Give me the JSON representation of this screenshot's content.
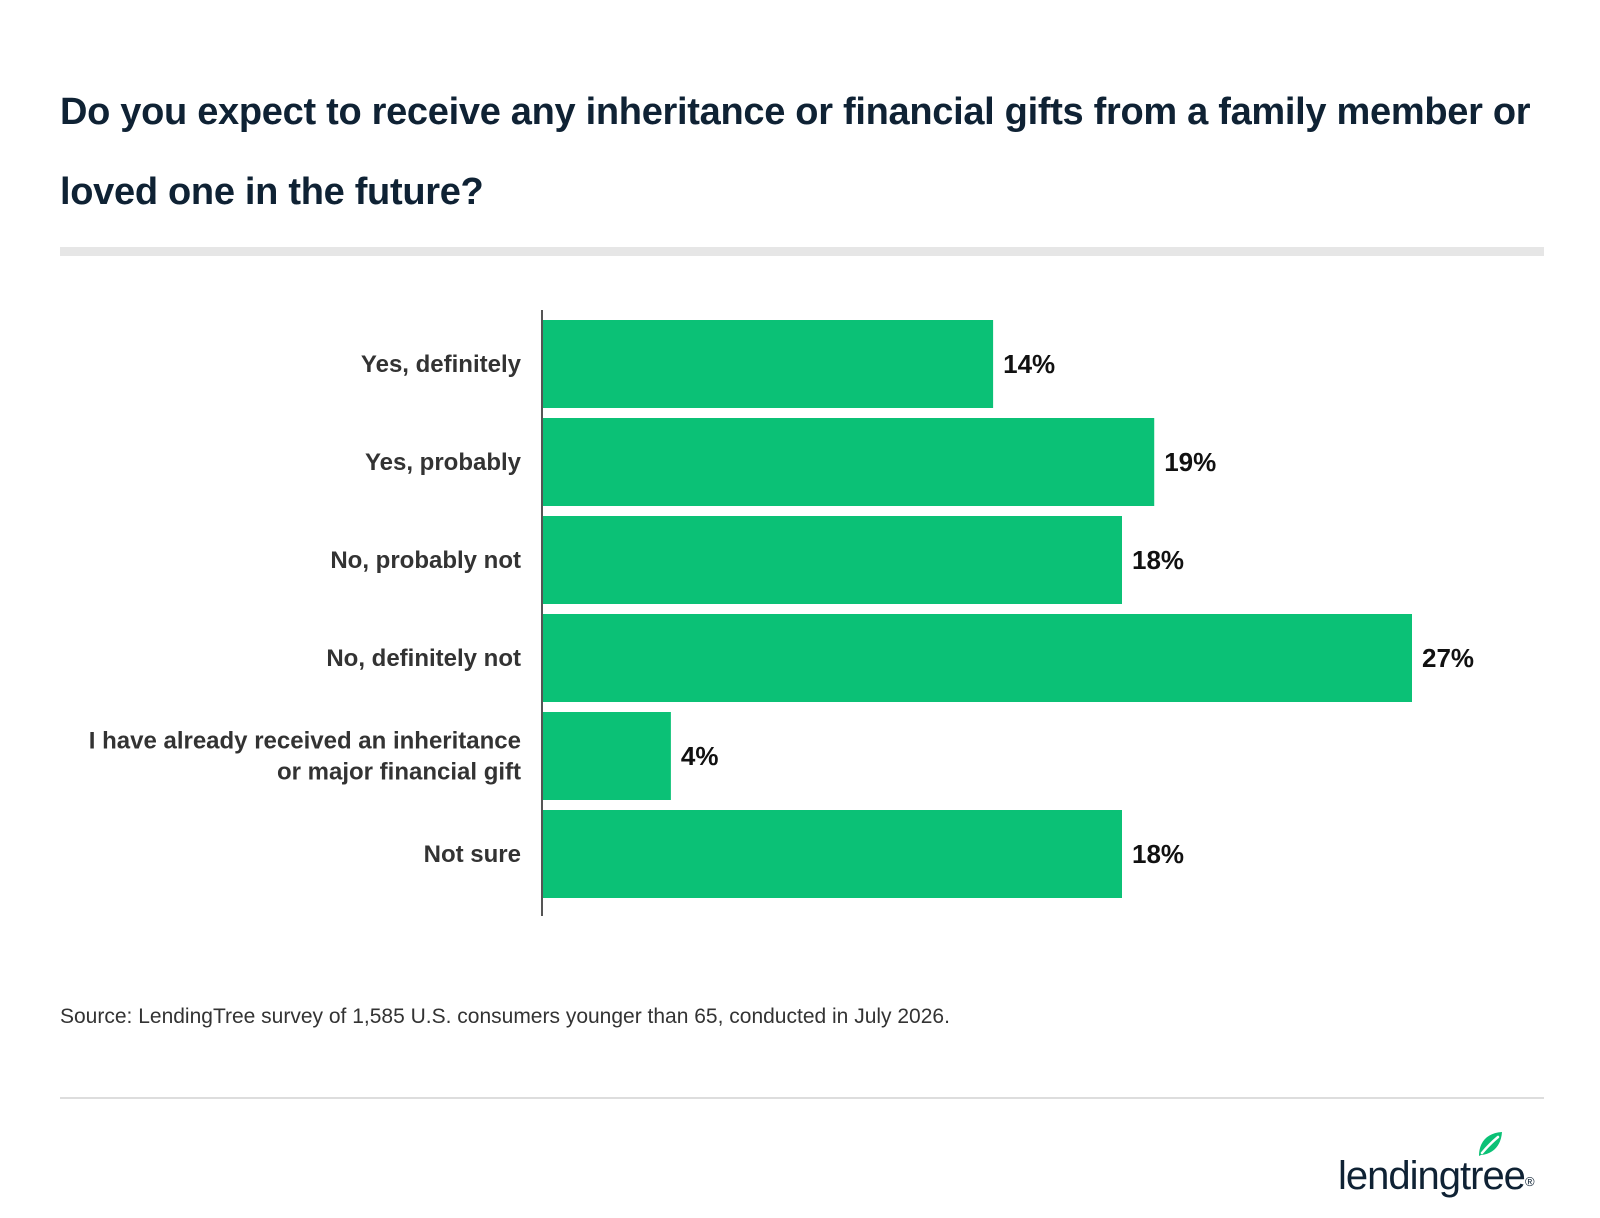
{
  "title": "Do you expect to receive any inheritance or financial gifts from a family member or loved one in the future?",
  "source": "Source: LendingTree survey of 1,585 U.S. consumers younger than 65, conducted in July 2026.",
  "brand": {
    "logo_text": "lendingtree",
    "logo_icon": "leaf-icon",
    "trademark": "®"
  },
  "colors": {
    "bar": "#0bc176",
    "title": "#0f2234",
    "label": "#333333",
    "value": "#111111",
    "axis": "#555555",
    "rule": "#e6e6e6"
  },
  "chart_data": {
    "type": "bar",
    "orientation": "horizontal",
    "categories": [
      [
        "Yes, definitely"
      ],
      [
        "Yes, probably"
      ],
      [
        "No, probably not"
      ],
      [
        "No, definitely not"
      ],
      [
        "I have already received an inheritance",
        "or major financial gift"
      ],
      [
        "Not sure"
      ]
    ],
    "values": [
      14,
      19,
      18,
      27,
      4,
      18
    ],
    "value_labels": [
      "14%",
      "19%",
      "18%",
      "27%",
      "4%",
      "18%"
    ],
    "unit": "%",
    "xlim": [
      0,
      27
    ],
    "grid": false,
    "legend": "none"
  }
}
